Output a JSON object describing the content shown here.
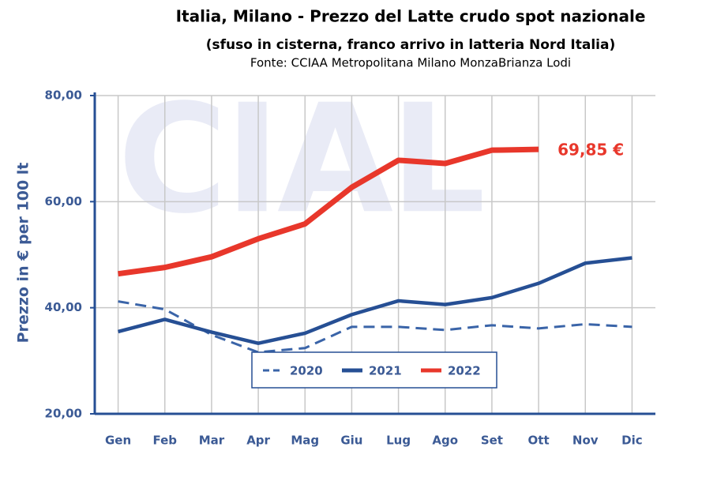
{
  "chart_data": {
    "type": "line",
    "title": "Italia, Milano - Prezzo del Latte crudo spot nazionale",
    "subtitle": "(sfuso in cisterna, franco arrivo in latteria Nord Italia)",
    "source": "Fonte: CCIAA Metropolitana Milano MonzaBrianza Lodi",
    "watermark": "CIAL",
    "y_label": "Prezzo in € per 100 lt",
    "categories": [
      "Gen",
      "Feb",
      "Mar",
      "Apr",
      "Mag",
      "Giu",
      "Lug",
      "Ago",
      "Set",
      "Ott",
      "Nov",
      "Dic"
    ],
    "series": [
      {
        "name": "2020",
        "color": "#3a64a8",
        "dashed": true,
        "values": [
          41.2,
          39.7,
          34.9,
          31.6,
          32.4,
          36.4,
          36.4,
          35.8,
          36.7,
          36.1,
          36.9,
          36.4
        ]
      },
      {
        "name": "2021",
        "color": "#264f94",
        "values": [
          35.5,
          37.8,
          35.4,
          33.3,
          35.2,
          38.7,
          41.3,
          40.6,
          41.9,
          44.6,
          48.4,
          49.4
        ]
      },
      {
        "name": "2022",
        "color": "#e8372b",
        "values": [
          46.4,
          47.6,
          49.6,
          53.0,
          55.8,
          62.7,
          67.8,
          67.2,
          69.7,
          69.85,
          null,
          null
        ],
        "value_labels": [
          null,
          null,
          null,
          null,
          null,
          null,
          null,
          null,
          null,
          "69,85 €",
          null,
          null
        ]
      }
    ],
    "ylim": [
      20,
      80
    ],
    "yticks": [
      {
        "value": 20,
        "label": "20,00"
      },
      {
        "value": 40,
        "label": "40,00"
      },
      {
        "value": 60,
        "label": "60,00"
      },
      {
        "value": 80,
        "label": "80,00"
      }
    ],
    "grid": true
  }
}
